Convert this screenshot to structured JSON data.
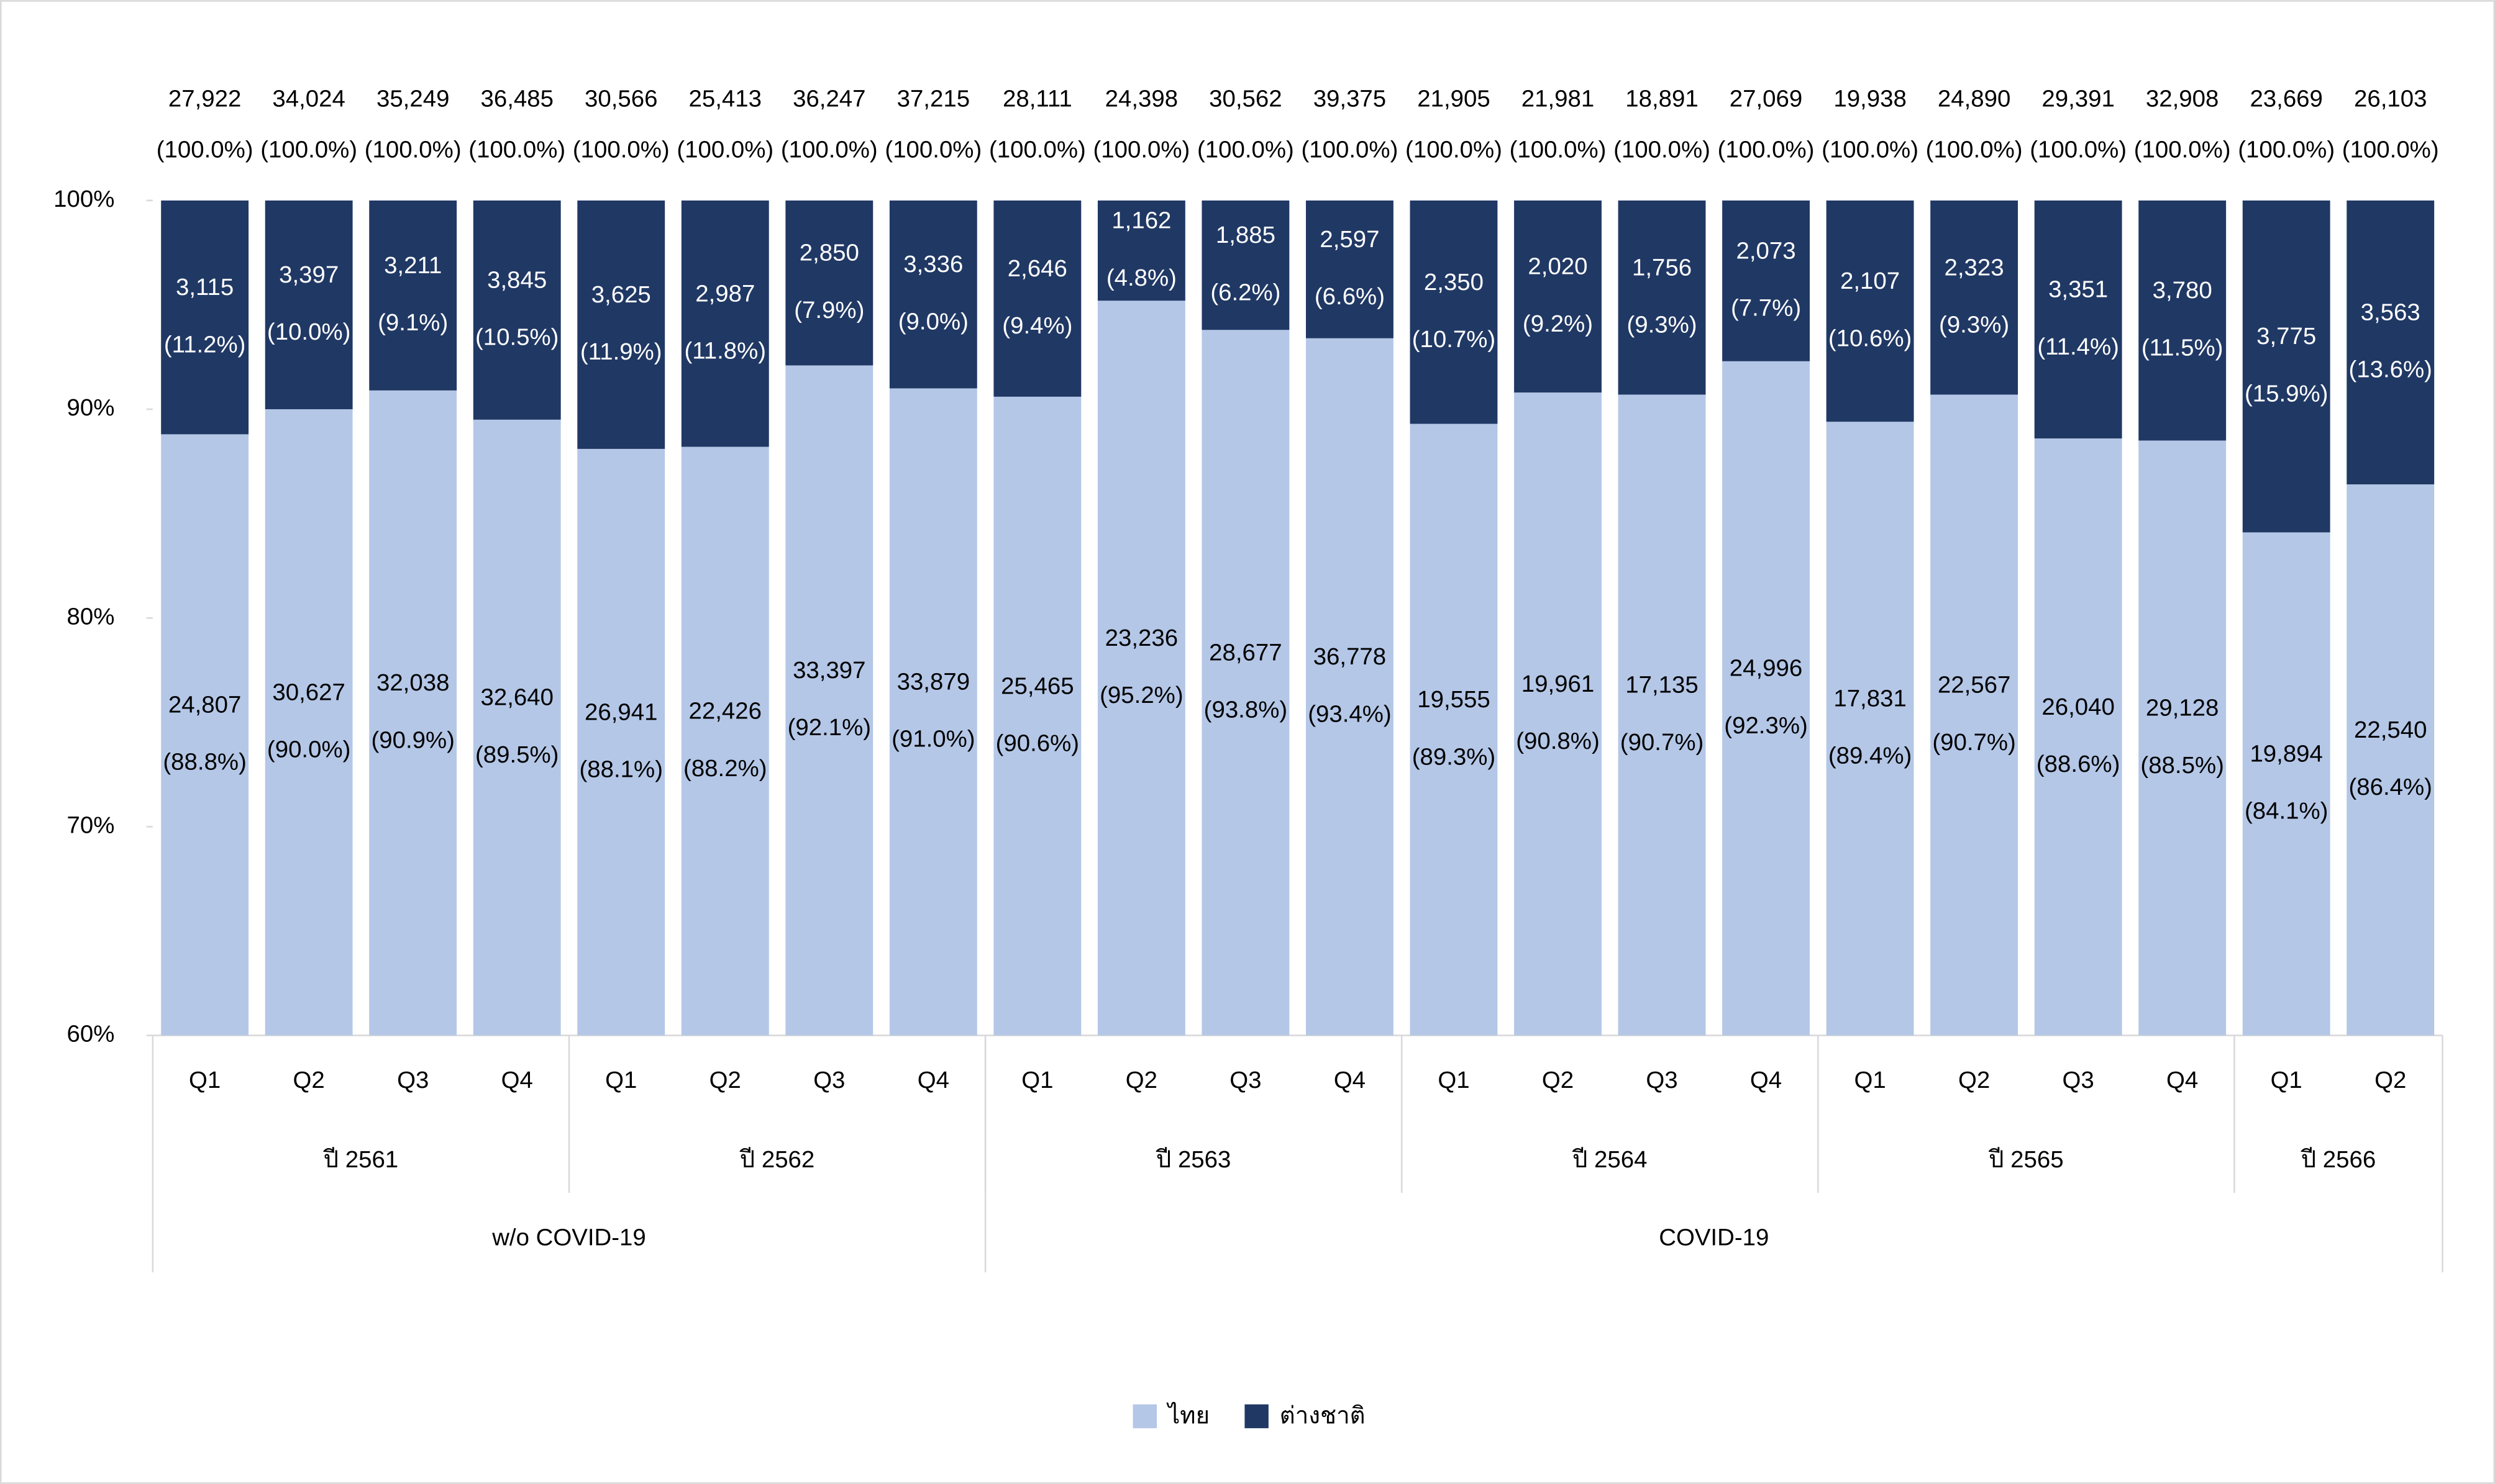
{
  "chart_data": {
    "type": "stacked_bar_100",
    "categories": [
      [
        "w/o COVID-19",
        "ปี 2561",
        "Q1"
      ],
      [
        "w/o COVID-19",
        "ปี 2561",
        "Q2"
      ],
      [
        "w/o COVID-19",
        "ปี 2561",
        "Q3"
      ],
      [
        "w/o COVID-19",
        "ปี 2561",
        "Q4"
      ],
      [
        "w/o COVID-19",
        "ปี 2562",
        "Q1"
      ],
      [
        "w/o COVID-19",
        "ปี 2562",
        "Q2"
      ],
      [
        "w/o COVID-19",
        "ปี 2562",
        "Q3"
      ],
      [
        "w/o COVID-19",
        "ปี 2562",
        "Q4"
      ],
      [
        "COVID-19",
        "ปี 2563",
        "Q1"
      ],
      [
        "COVID-19",
        "ปี 2563",
        "Q2"
      ],
      [
        "COVID-19",
        "ปี 2563",
        "Q3"
      ],
      [
        "COVID-19",
        "ปี 2563",
        "Q4"
      ],
      [
        "COVID-19",
        "ปี 2564",
        "Q1"
      ],
      [
        "COVID-19",
        "ปี 2564",
        "Q2"
      ],
      [
        "COVID-19",
        "ปี 2564",
        "Q3"
      ],
      [
        "COVID-19",
        "ปี 2564",
        "Q4"
      ],
      [
        "COVID-19",
        "ปี 2565",
        "Q1"
      ],
      [
        "COVID-19",
        "ปี 2565",
        "Q2"
      ],
      [
        "COVID-19",
        "ปี 2565",
        "Q3"
      ],
      [
        "COVID-19",
        "ปี 2565",
        "Q4"
      ],
      [
        "COVID-19",
        "ปี 2566",
        "Q1"
      ],
      [
        "COVID-19",
        "ปี 2566",
        "Q2"
      ]
    ],
    "series": [
      {
        "name": "ไทย",
        "color": "#b4c7e7",
        "values": [
          88.8,
          90.0,
          90.9,
          89.5,
          88.1,
          88.2,
          92.1,
          91.0,
          90.6,
          95.2,
          93.8,
          93.4,
          89.3,
          90.8,
          90.7,
          92.3,
          89.4,
          90.7,
          88.6,
          88.5,
          84.1,
          86.4
        ],
        "value_labels": [
          "(88.8%)",
          "(90.0%)",
          "(90.9%)",
          "(89.5%)",
          "(88.1%)",
          "(88.2%)",
          "(92.1%)",
          "(91.0%)",
          "(90.6%)",
          "(95.2%)",
          "(93.8%)",
          "(93.4%)",
          "(89.3%)",
          "(90.8%)",
          "(90.7%)",
          "(92.3%)",
          "(89.4%)",
          "(90.7%)",
          "(88.6%)",
          "(88.5%)",
          "(84.1%)",
          "(86.4%)"
        ],
        "counts": [
          "24,807",
          "30,627",
          "32,038",
          "32,640",
          "26,941",
          "22,426",
          "33,397",
          "33,879",
          "25,465",
          "23,236",
          "28,677",
          "36,778",
          "19,555",
          "19,961",
          "17,135",
          "24,996",
          "17,831",
          "22,567",
          "26,040",
          "29,128",
          "19,894",
          "22,540"
        ]
      },
      {
        "name": "ต่างชาติ",
        "color": "#203864",
        "values": [
          11.2,
          10.0,
          9.1,
          10.5,
          11.9,
          11.8,
          7.9,
          9.0,
          9.4,
          4.8,
          6.2,
          6.6,
          10.7,
          9.2,
          9.3,
          7.7,
          10.6,
          9.3,
          11.4,
          11.5,
          15.9,
          13.6
        ],
        "value_labels": [
          "(11.2%)",
          "(10.0%)",
          "(9.1%)",
          "(10.5%)",
          "(11.9%)",
          "(11.8%)",
          "(7.9%)",
          "(9.0%)",
          "(9.4%)",
          "(4.8%)",
          "(6.2%)",
          "(6.6%)",
          "(10.7%)",
          "(9.2%)",
          "(9.3%)",
          "(7.7%)",
          "(10.6%)",
          "(9.3%)",
          "(11.4%)",
          "(11.5%)",
          "(15.9%)",
          "(13.6%)"
        ],
        "counts": [
          "3,115",
          "3,397",
          "3,211",
          "3,845",
          "3,625",
          "2,987",
          "2,850",
          "3,336",
          "2,646",
          "1,162",
          "1,885",
          "2,597",
          "2,350",
          "2,020",
          "1,756",
          "2,073",
          "2,107",
          "2,323",
          "3,351",
          "3,780",
          "3,775",
          "3,563"
        ]
      }
    ],
    "totals": [
      "27,922",
      "34,024",
      "35,249",
      "36,485",
      "30,566",
      "25,413",
      "36,247",
      "37,215",
      "28,111",
      "24,398",
      "30,562",
      "39,375",
      "21,905",
      "21,981",
      "18,891",
      "27,069",
      "19,938",
      "24,890",
      "29,391",
      "32,908",
      "23,669",
      "26,103"
    ],
    "total_labels": [
      "(100.0%)",
      "(100.0%)",
      "(100.0%)",
      "(100.0%)",
      "(100.0%)",
      "(100.0%)",
      "(100.0%)",
      "(100.0%)",
      "(100.0%)",
      "(100.0%)",
      "(100.0%)",
      "(100.0%)",
      "(100.0%)",
      "(100.0%)",
      "(100.0%)",
      "(100.0%)",
      "(100.0%)",
      "(100.0%)",
      "(100.0%)",
      "(100.0%)",
      "(100.0%)",
      "(100.0%)"
    ],
    "ylim": [
      60,
      100
    ],
    "yticks": [
      {
        "value": 60,
        "label": "60%"
      },
      {
        "value": 70,
        "label": "70%"
      },
      {
        "value": 80,
        "label": "80%"
      },
      {
        "value": 90,
        "label": "90%"
      },
      {
        "value": 100,
        "label": "100%"
      }
    ],
    "legend": "bottom"
  }
}
